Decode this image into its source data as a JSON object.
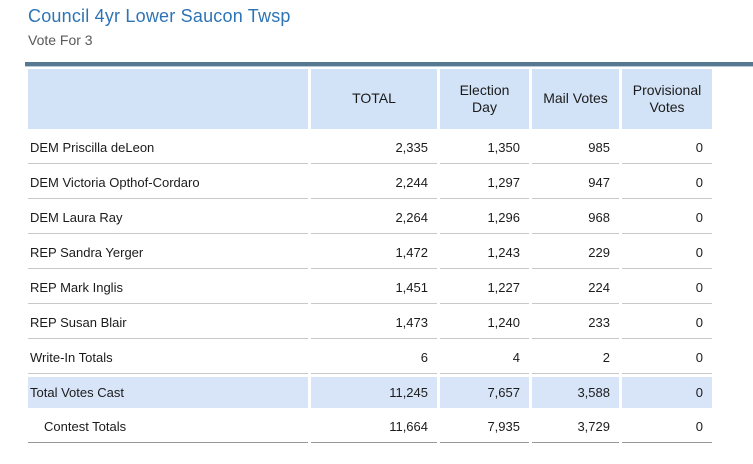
{
  "page": {
    "title": "Council 4yr Lower Saucon Twsp",
    "subtitle": "Vote For 3"
  },
  "table": {
    "columns": [
      "",
      "TOTAL",
      "Election\nDay",
      "Mail Votes",
      "Provisional\nVotes"
    ],
    "rows": [
      {
        "type": "candidate",
        "label": "DEM Priscilla deLeon",
        "values": [
          "2,335",
          "1,350",
          "985",
          "0"
        ]
      },
      {
        "type": "candidate",
        "label": "DEM Victoria Opthof-Cordaro",
        "values": [
          "2,244",
          "1,297",
          "947",
          "0"
        ]
      },
      {
        "type": "candidate",
        "label": "DEM Laura Ray",
        "values": [
          "2,264",
          "1,296",
          "968",
          "0"
        ]
      },
      {
        "type": "candidate",
        "label": "REP Sandra Yerger",
        "values": [
          "1,472",
          "1,243",
          "229",
          "0"
        ]
      },
      {
        "type": "candidate",
        "label": "REP Mark Inglis",
        "values": [
          "1,451",
          "1,227",
          "224",
          "0"
        ]
      },
      {
        "type": "candidate",
        "label": "REP Susan Blair",
        "values": [
          "1,473",
          "1,240",
          "233",
          "0"
        ]
      },
      {
        "type": "candidate",
        "label": "Write-In Totals",
        "values": [
          "6",
          "4",
          "2",
          "0"
        ]
      },
      {
        "type": "total",
        "label": "Total Votes Cast",
        "values": [
          "11,245",
          "7,657",
          "3,588",
          "0"
        ]
      },
      {
        "type": "contest",
        "label": "Contest Totals",
        "values": [
          "11,664",
          "7,935",
          "3,729",
          "0"
        ]
      }
    ]
  },
  "colors": {
    "title_blue": "#2E74B5",
    "header_background": "#d3e3f7",
    "total_row_background": "#d8e5f8",
    "top_rule": "#567891",
    "row_separator": "#c9c9c9",
    "text": "#1b1b1b"
  }
}
